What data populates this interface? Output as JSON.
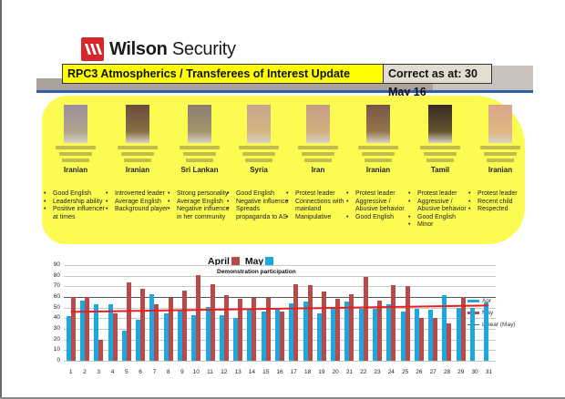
{
  "brand": {
    "name_bold": "Wilson",
    "name_regular": "Security",
    "color": "#d6262b"
  },
  "header": {
    "title": "RPC3 Atmospherics / Transferees of Interest Update",
    "date_label": "Correct as at: 30 May 16",
    "title_bg": "#ffff00",
    "date_bg": "#e3ddd0"
  },
  "persons": [
    {
      "nationality": "Iranian",
      "traits": [
        "Good English",
        "Leadership ability",
        "Positive influencer at times"
      ],
      "photo_tone": "#9c8f9c"
    },
    {
      "nationality": "Iranian",
      "traits": [
        "Introverted leader",
        "Average English",
        "Background player"
      ],
      "photo_tone": "#6b4b40"
    },
    {
      "nationality": "Sri Lankan",
      "traits": [
        "Strong personality",
        "Average English",
        "Negative influence in her community"
      ],
      "photo_tone": "#8a7c72"
    },
    {
      "nationality": "Syria",
      "traits": [
        "Good English",
        "Negative influence",
        "Spreads propaganda to AS"
      ],
      "photo_tone": "#c9a48e"
    },
    {
      "nationality": "Iran",
      "traits": [
        "Protest leader",
        "Connections with mainland",
        "Manipulative"
      ],
      "photo_tone": "#c79d88"
    },
    {
      "nationality": "Iranian",
      "traits": [
        "Protest leader",
        "Aggressive / Abusive behavior",
        "Good English"
      ],
      "photo_tone": "#7a5548"
    },
    {
      "nationality": "Tamil",
      "traits": [
        "Protest leader",
        "Aggressive / Abusive behavior",
        "Good English",
        "Minor"
      ],
      "photo_tone": "#3a2a24"
    },
    {
      "nationality": "Iranian",
      "traits": [
        "Protest leader",
        "Recent child",
        "Respected"
      ],
      "photo_tone": "#d9a68c"
    }
  ],
  "chart_data": {
    "type": "bar",
    "title": "April ■ May ■",
    "title_labels": {
      "april": "April",
      "may": "May"
    },
    "subtitle": "Demonstration participation",
    "xlabel": "",
    "ylabel": "",
    "ylim": [
      0,
      90
    ],
    "yticks": [
      0,
      10,
      20,
      30,
      40,
      50,
      60,
      70,
      80,
      90
    ],
    "grid": true,
    "legend_position": "right",
    "categories": [
      "1",
      "2",
      "3",
      "4",
      "5",
      "6",
      "7",
      "8",
      "9",
      "10",
      "11",
      "12",
      "13",
      "14",
      "15",
      "16",
      "17",
      "18",
      "19",
      "20",
      "21",
      "22",
      "23",
      "24",
      "25",
      "26",
      "27",
      "28",
      "29",
      "30",
      "31"
    ],
    "series": [
      {
        "name": "Apr",
        "color": "#1ba8de",
        "values": [
          42,
          57,
          53,
          53,
          28,
          39,
          63,
          45,
          48,
          43,
          51,
          43,
          40,
          48,
          46,
          49,
          54,
          56,
          45,
          49,
          56,
          49,
          49,
          53,
          46,
          49,
          48,
          62,
          50,
          50,
          55
        ]
      },
      {
        "name": "May",
        "color": "#b84a4a",
        "values": [
          60,
          60,
          20,
          45,
          74,
          68,
          53,
          59,
          66,
          81,
          72,
          62,
          58,
          59,
          59,
          46,
          72,
          71,
          65,
          58,
          63,
          79,
          57,
          71,
          70,
          40,
          40,
          35,
          60,
          null,
          null
        ]
      }
    ],
    "trendline": {
      "name": "Linear (May)",
      "color": "#e8201f",
      "start": 46,
      "end": 52
    },
    "reference_line": {
      "value": 60,
      "color": "#555555"
    },
    "legend": [
      "Apr",
      "May",
      "Linear (May)"
    ]
  }
}
